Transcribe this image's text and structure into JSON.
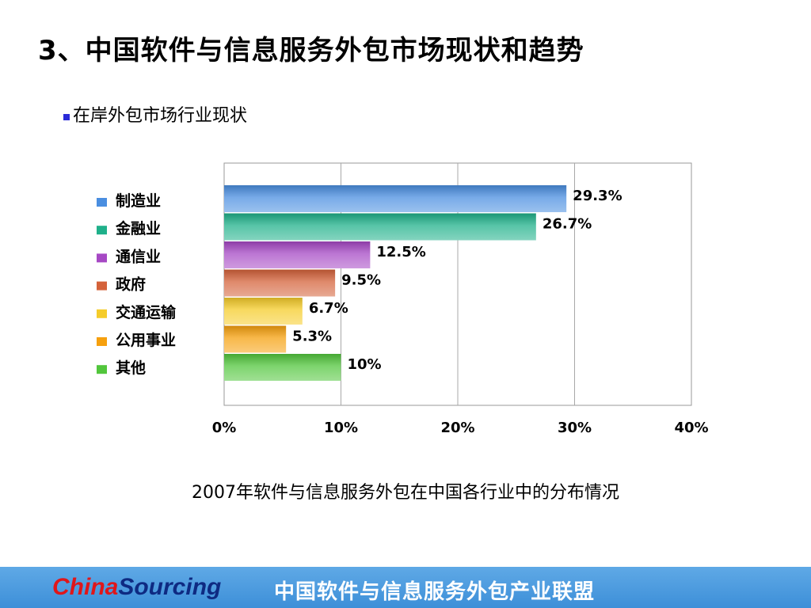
{
  "slide": {
    "title": "3、中国软件与信息服务外包市场现状和趋势",
    "bullet": "在岸外包市场行业现状",
    "caption": "2007年软件与信息服务外包在中国各行业中的分布情况"
  },
  "footer": {
    "brand_part1": "China",
    "brand_part2": "Sourcing",
    "org_name": "中国软件与信息服务外包产业联盟"
  },
  "chart_data": {
    "type": "bar",
    "orientation": "horizontal",
    "categories": [
      "制造业",
      "金融业",
      "通信业",
      "政府",
      "交通运输",
      "公用事业",
      "其他"
    ],
    "values": [
      29.3,
      26.7,
      12.5,
      9.5,
      6.7,
      5.3,
      10
    ],
    "data_labels": [
      "29.3%",
      "26.7%",
      "12.5%",
      "9.5%",
      "6.7%",
      "5.3%",
      "10%"
    ],
    "colors": [
      "#4a8ee0",
      "#1fb08a",
      "#a648c4",
      "#d4623a",
      "#f5cc2a",
      "#f6a00e",
      "#52c63c"
    ],
    "xlim": [
      0,
      40
    ],
    "xticks": [
      0,
      10,
      20,
      30,
      40
    ],
    "xtick_labels": [
      "0%",
      "10%",
      "20%",
      "30%",
      "40%"
    ],
    "grid": "vertical",
    "legend_placement": "left"
  }
}
